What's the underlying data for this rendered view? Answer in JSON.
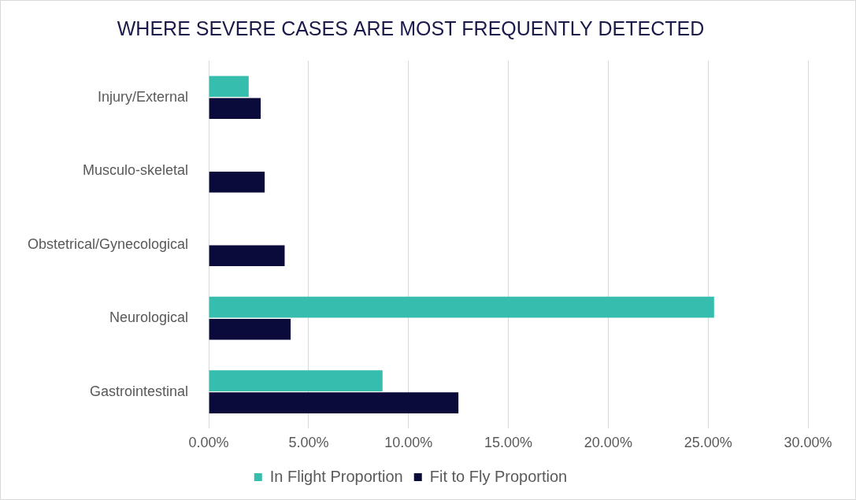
{
  "chart_data": {
    "type": "bar",
    "orientation": "horizontal",
    "title": "WHERE SEVERE CASES ARE MOST FREQUENTLY DETECTED",
    "categories": [
      "Injury/External",
      "Musculo-skeletal",
      "Obstetrical/Gynecological",
      "Neurological",
      "Gastrointestinal"
    ],
    "series": [
      {
        "name": "In Flight Proportion",
        "color": "#36bdae",
        "values": [
          2.0,
          null,
          null,
          25.3,
          8.7
        ]
      },
      {
        "name": "Fit to Fly Proportion",
        "color": "#0b0b3b",
        "values": [
          2.6,
          2.8,
          3.8,
          4.1,
          12.5
        ]
      }
    ],
    "xlim": [
      0,
      30
    ],
    "xticks": [
      {
        "value": 0,
        "label": "0.00%"
      },
      {
        "value": 5,
        "label": "5.00%"
      },
      {
        "value": 10,
        "label": "10.00%"
      },
      {
        "value": 15,
        "label": "15.00%"
      },
      {
        "value": 20,
        "label": "20.00%"
      },
      {
        "value": 25,
        "label": "25.00%"
      },
      {
        "value": 30,
        "label": "30.00%"
      }
    ],
    "grid": true,
    "legend": "bottom"
  }
}
